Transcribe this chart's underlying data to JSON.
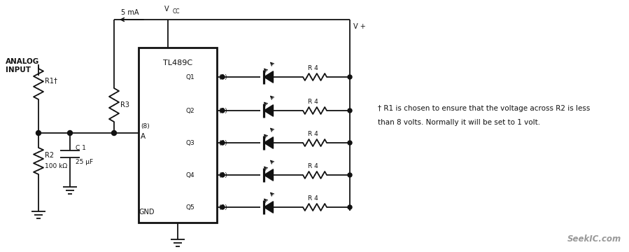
{
  "bg_color": "#ffffff",
  "line_color": "#111111",
  "figsize": [
    8.99,
    3.6
  ],
  "dpi": 100,
  "annotation_line1": "† R1 is chosen to ensure that the voltage across R2 is less",
  "annotation_line2": "than 8 volts. Normally it will be set to 1 volt.",
  "watermark": "SeekIC.com"
}
